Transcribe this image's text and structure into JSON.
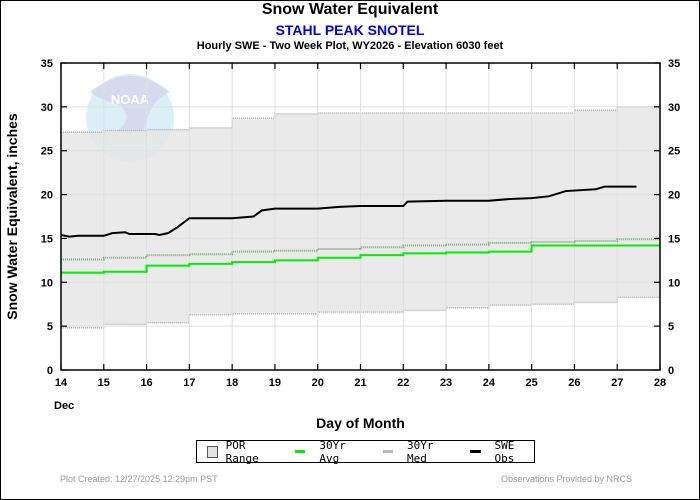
{
  "header": {
    "title": "Snow Water Equivalent",
    "station": "STAHL PEAK SNOTEL",
    "subtitle": "Hourly SWE - Two Week Plot, WY2026 -  Elevation 6030 feet"
  },
  "footer": {
    "created": "Plot Created: 12/27/2025 12:29pm PST",
    "provider": "Observations Provided by NRCS"
  },
  "colors": {
    "por_fill": "#e6e6e6",
    "por_edge": "#b0b0b0",
    "avg": "#00ee00",
    "med": "#7fa87f",
    "obs": "#000000",
    "watermark": "#c9d9ec"
  },
  "watermark": "NOAA",
  "chart_data": {
    "type": "line",
    "title": "Snow Water Equivalent",
    "xlabel": "Day of Month",
    "xlabel_month": "Dec",
    "ylabel": "Snow Water Equivalent, inches",
    "xlim": [
      14,
      28
    ],
    "ylim": [
      0,
      35
    ],
    "xticks": [
      14,
      15,
      16,
      17,
      18,
      19,
      20,
      21,
      22,
      23,
      24,
      25,
      26,
      27,
      28
    ],
    "yticks": [
      0,
      5,
      10,
      15,
      20,
      25,
      30,
      35
    ],
    "grid": true,
    "legend_position": "bottom",
    "legend": [
      "POR Range",
      "30Yr Avg",
      "30Yr Med",
      "SWE Obs"
    ],
    "days": [
      14,
      15,
      16,
      17,
      18,
      19,
      20,
      21,
      22,
      23,
      24,
      25,
      26,
      27
    ],
    "por_max": [
      27.1,
      27.3,
      27.4,
      27.6,
      28.7,
      29.2,
      29.3,
      29.3,
      29.3,
      29.3,
      29.3,
      29.3,
      29.6,
      30.0
    ],
    "por_min": [
      4.8,
      5.2,
      5.4,
      6.3,
      6.4,
      6.4,
      6.6,
      6.6,
      6.8,
      7.1,
      7.4,
      7.5,
      7.7,
      8.3
    ],
    "avg_30yr": [
      11.1,
      11.2,
      11.9,
      12.1,
      12.3,
      12.5,
      12.8,
      13.1,
      13.3,
      13.4,
      13.5,
      14.2,
      14.2,
      14.2
    ],
    "med_30yr": [
      12.6,
      12.8,
      13.1,
      13.2,
      13.5,
      13.6,
      13.8,
      14.0,
      14.2,
      14.3,
      14.5,
      14.6,
      14.7,
      14.9
    ],
    "swe_obs": {
      "x": [
        14.0,
        14.2,
        14.4,
        15.0,
        15.2,
        15.5,
        15.6,
        16.2,
        16.3,
        16.5,
        16.7,
        17.0,
        18.0,
        18.5,
        18.7,
        19.0,
        20.0,
        20.5,
        21.0,
        22.0,
        22.1,
        23.0,
        24.0,
        24.5,
        25.0,
        25.4,
        25.8,
        26.5,
        26.7,
        27.45
      ],
      "y": [
        15.4,
        15.2,
        15.3,
        15.3,
        15.6,
        15.7,
        15.5,
        15.5,
        15.4,
        15.6,
        16.2,
        17.3,
        17.3,
        17.5,
        18.2,
        18.4,
        18.4,
        18.6,
        18.7,
        18.7,
        19.2,
        19.3,
        19.3,
        19.5,
        19.6,
        19.8,
        20.4,
        20.6,
        20.9,
        20.9
      ]
    }
  }
}
